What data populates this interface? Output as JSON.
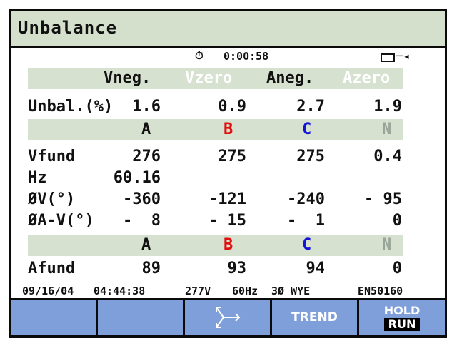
{
  "title": "Unbalance",
  "status_bar": {
    "timer": "0:00:58"
  },
  "header_row": {
    "vneg": "Vneg.",
    "vzero": "Vzero",
    "aneg": "Aneg.",
    "azero": "Azero"
  },
  "unbal": {
    "label": "Unbal.(%)",
    "vneg": "1.6",
    "vzero": "0.9",
    "aneg": "2.7",
    "azero": "1.9"
  },
  "phases": {
    "a": "A",
    "b": "B",
    "c": "C",
    "n": "N"
  },
  "vfund": {
    "label": "Vfund",
    "a": "276",
    "b": "275",
    "c": "275",
    "n": "0.4"
  },
  "hz": {
    "label": "Hz",
    "value": "60.16"
  },
  "phase_v": {
    "label": "ØV(°)",
    "a": "-360",
    "b": "-121",
    "c": "-240",
    "n": "- 95"
  },
  "phase_av": {
    "label": "ØA-V(°)",
    "a": "-  8",
    "b": "- 15",
    "c": "-  1",
    "n": "0"
  },
  "afund": {
    "label": "Afund",
    "a": "89",
    "b": "93",
    "c": "94",
    "n": "0"
  },
  "footer": {
    "date": "09/16/04",
    "time": "04:44:38",
    "nominal_v": "277V",
    "freq": "60Hz",
    "config": "3Ø WYE",
    "standard": "EN50160"
  },
  "softkeys": {
    "trend": "TREND",
    "hold": "HOLD",
    "run": "RUN"
  },
  "colors": {
    "phase_a": "#111111",
    "phase_b": "#e01010",
    "phase_c": "#1414d8",
    "phase_n": "#9aa59a",
    "softkey_bg": "#7f9fdb",
    "band": "#d6e1d0"
  }
}
